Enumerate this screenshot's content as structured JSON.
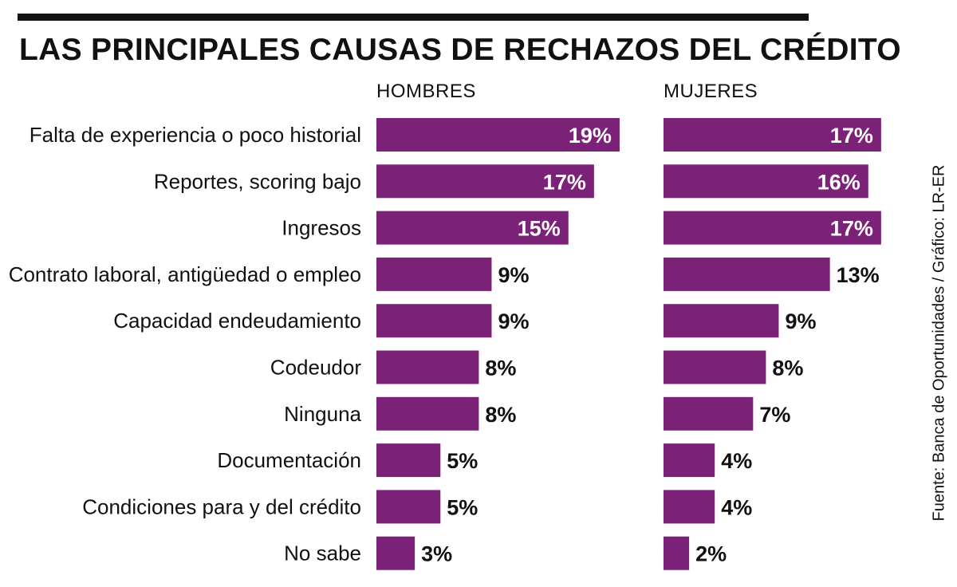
{
  "title": "LAS PRINCIPALES CAUSAS DE RECHAZOS DEL CRÉDITO",
  "source": "Fuente: Banca de Oportunidades / Gráfico: LR-ER",
  "colors": {
    "bar": "#7b2278",
    "text": "#111111",
    "label_inside": "#ffffff"
  },
  "chart_data": {
    "type": "bar",
    "orientation": "horizontal",
    "categories": [
      "Falta de experiencia o poco historial",
      "Reportes, scoring bajo",
      "Ingresos",
      "Contrato laboral, antigüedad o empleo",
      "Capacidad endeudamiento",
      "Codeudor",
      "Ninguna",
      "Documentación",
      "Condiciones para y del crédito",
      "No sabe"
    ],
    "series": [
      {
        "name": "HOMBRES",
        "values": [
          19,
          17,
          15,
          9,
          9,
          8,
          8,
          5,
          5,
          3
        ],
        "labels": [
          "19%",
          "17%",
          "15%",
          "9%",
          "9%",
          "8%",
          "8%",
          "5%",
          "5%",
          "3%"
        ]
      },
      {
        "name": "MUJERES",
        "values": [
          17,
          16,
          17,
          13,
          9,
          8,
          7,
          4,
          4,
          2
        ],
        "labels": [
          "17%",
          "16%",
          "17%",
          "13%",
          "9%",
          "8%",
          "7%",
          "4%",
          "4%",
          "2%"
        ]
      }
    ],
    "unit": "%",
    "grid": false,
    "legend": "none"
  }
}
